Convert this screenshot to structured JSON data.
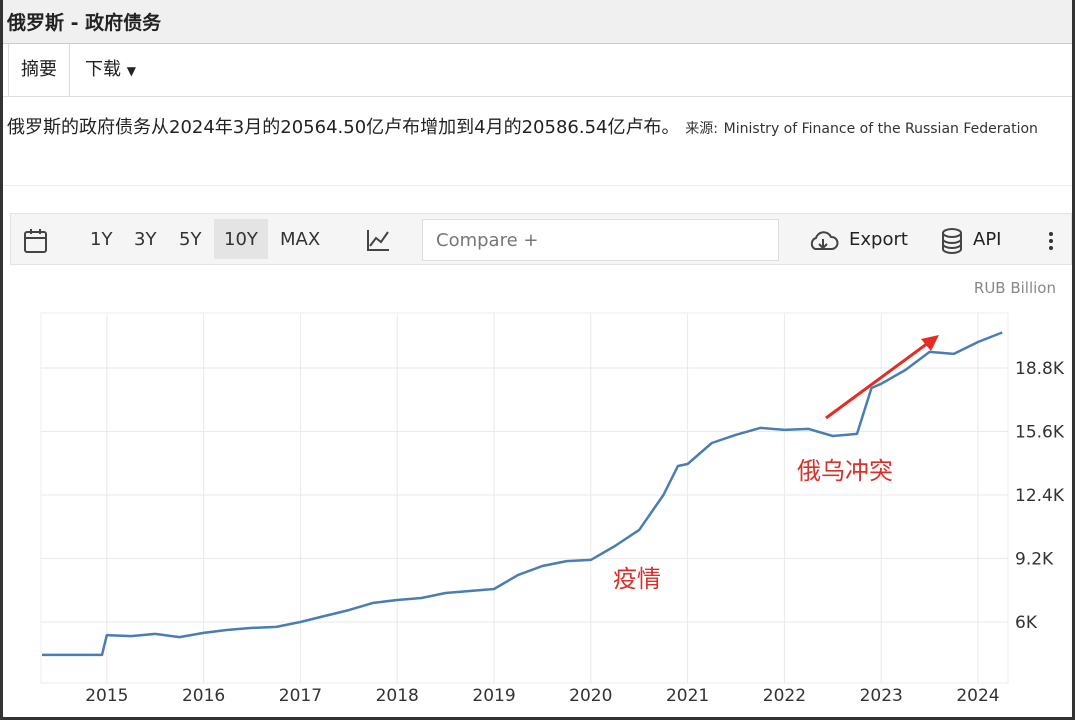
{
  "header": {
    "title": "俄罗斯 - 政府债务"
  },
  "tabs": [
    "摘要",
    "下载"
  ],
  "summary": {
    "text": "俄罗斯的政府债务从2024年3月的20564.50亿卢布增加到4月的20586.54亿卢布。",
    "source_label": "来源:",
    "source": "Ministry of Finance of the Russian Federation"
  },
  "toolbar": {
    "ranges": [
      "1Y",
      "3Y",
      "5Y",
      "10Y",
      "MAX"
    ],
    "active_range": "10Y",
    "compare": "Compare +",
    "export": "Export",
    "api": "API"
  },
  "chart_data": {
    "type": "line",
    "unit": "RUB Billion",
    "color": "#4a7db3",
    "x": [
      2014.33,
      2014.75,
      2014.95,
      2015.0,
      2015.25,
      2015.5,
      2015.75,
      2016.0,
      2016.25,
      2016.5,
      2016.75,
      2017.0,
      2017.25,
      2017.5,
      2017.75,
      2018.0,
      2018.25,
      2018.5,
      2018.75,
      2019.0,
      2019.25,
      2019.5,
      2019.75,
      2020.0,
      2020.25,
      2020.5,
      2020.75,
      2020.9,
      2021.0,
      2021.25,
      2021.5,
      2021.75,
      2022.0,
      2022.25,
      2022.5,
      2022.75,
      2022.9,
      2023.0,
      2023.25,
      2023.5,
      2023.75,
      2024.0,
      2024.25
    ],
    "values": [
      4340,
      4340,
      4340,
      5340,
      5290,
      5400,
      5240,
      5450,
      5600,
      5700,
      5750,
      6000,
      6300,
      6600,
      6960,
      7110,
      7210,
      7460,
      7560,
      7660,
      8370,
      8820,
      9070,
      9130,
      9830,
      10640,
      12400,
      13860,
      13960,
      15020,
      15430,
      15780,
      15680,
      15730,
      15370,
      15480,
      17790,
      18000,
      18700,
      19610,
      19510,
      20110,
      20587
    ],
    "xlim": [
      2014.32,
      2024.31
    ],
    "xticks": [
      2015,
      2016,
      2017,
      2018,
      2019,
      2020,
      2021,
      2022,
      2023,
      2024
    ],
    "ylim": [
      2925,
      21570
    ],
    "yticks": [
      {
        "value": 6000,
        "label": "6K"
      },
      {
        "value": 9200,
        "label": "9.2K"
      },
      {
        "value": 12400,
        "label": "12.4K"
      },
      {
        "value": 15600,
        "label": "15.6K"
      },
      {
        "value": 18800,
        "label": "18.8K"
      }
    ],
    "grid": true,
    "annotations": [
      "疫情",
      "俄乌冲突"
    ]
  }
}
